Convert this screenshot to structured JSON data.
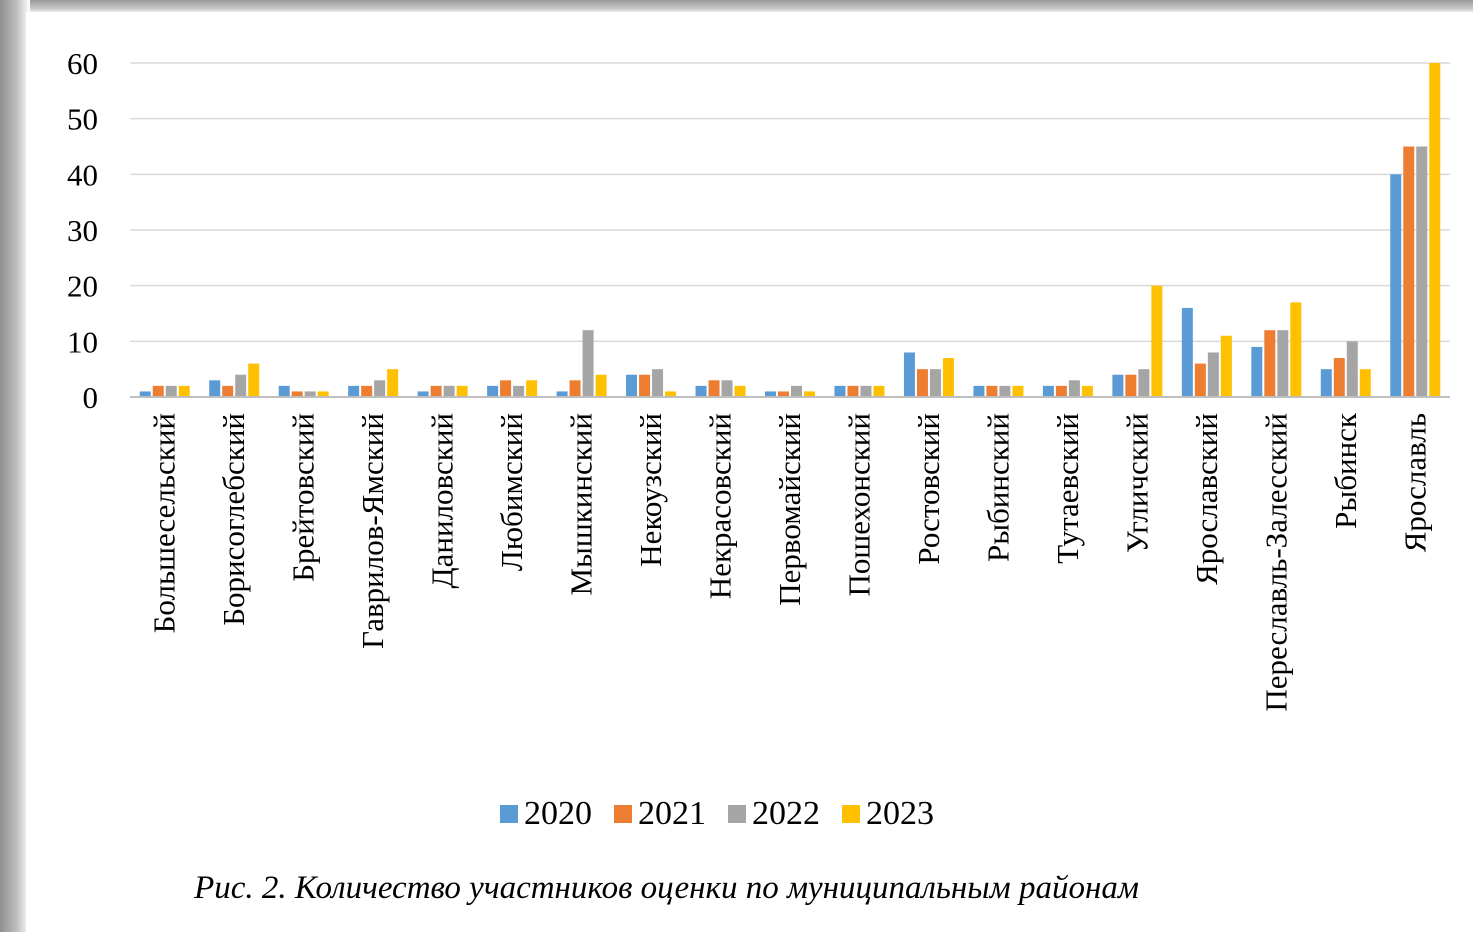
{
  "chart_data": {
    "type": "bar",
    "categories": [
      "Большесельский",
      "Борисоглебский",
      "Брейтовский",
      "Гаврилов-Ямский",
      "Даниловский",
      "Любимский",
      "Мышкинский",
      "Некоузский",
      "Некрасовский",
      "Первомайский",
      "Пошехонский",
      "Ростовский",
      "Рыбинский",
      "Тутаевский",
      "Угличский",
      "Ярославский",
      "Переславль-Залесский",
      "Рыбинск",
      "Ярославль"
    ],
    "series": [
      {
        "name": "2020",
        "color": "#5B9BD5",
        "values": [
          1,
          3,
          2,
          2,
          1,
          2,
          1,
          4,
          2,
          1,
          2,
          8,
          2,
          2,
          4,
          16,
          9,
          5,
          40
        ]
      },
      {
        "name": "2021",
        "color": "#ED7D31",
        "values": [
          2,
          2,
          1,
          2,
          2,
          3,
          3,
          4,
          3,
          1,
          2,
          5,
          2,
          2,
          4,
          6,
          12,
          7,
          45
        ]
      },
      {
        "name": "2022",
        "color": "#A5A5A5",
        "values": [
          2,
          4,
          1,
          3,
          2,
          2,
          12,
          5,
          3,
          2,
          2,
          5,
          2,
          3,
          5,
          8,
          12,
          10,
          45
        ]
      },
      {
        "name": "2023",
        "color": "#FFC000",
        "values": [
          2,
          6,
          1,
          5,
          2,
          3,
          4,
          1,
          2,
          1,
          2,
          7,
          2,
          2,
          20,
          11,
          17,
          5,
          60
        ]
      }
    ],
    "yticks": [
      "0",
      "10",
      "20",
      "30",
      "40",
      "50",
      "60"
    ],
    "ylim": [
      0,
      60
    ],
    "grid": true,
    "legend": "bottom",
    "caption": "Рис. 2. Количество участников оценки по муниципальным районам"
  }
}
